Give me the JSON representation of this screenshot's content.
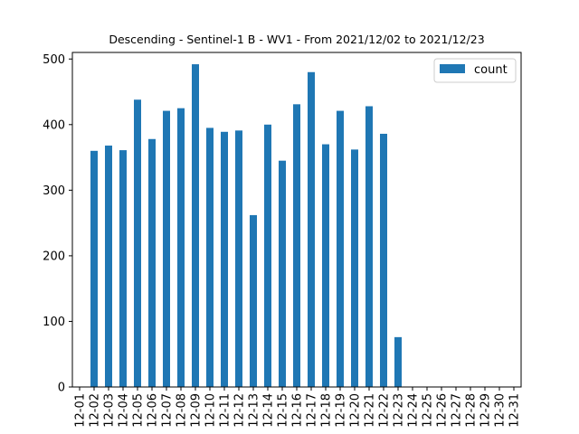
{
  "chart_data": {
    "type": "bar",
    "title": "Descending - Sentinel-1 B - WV1 - From 2021/12/02 to 2021/12/23",
    "xlabel": "",
    "ylabel": "",
    "ylim": [
      0,
      510
    ],
    "yticks": [
      0,
      100,
      200,
      300,
      400,
      500
    ],
    "grid": false,
    "legend_position": "top-right",
    "categories": [
      "12-01",
      "12-02",
      "12-03",
      "12-04",
      "12-05",
      "12-06",
      "12-07",
      "12-08",
      "12-09",
      "12-10",
      "12-11",
      "12-12",
      "12-13",
      "12-14",
      "12-15",
      "12-16",
      "12-17",
      "12-18",
      "12-19",
      "12-20",
      "12-21",
      "12-22",
      "12-23",
      "12-24",
      "12-25",
      "12-26",
      "12-27",
      "12-28",
      "12-29",
      "12-30",
      "12-31"
    ],
    "series": [
      {
        "name": "count",
        "color": "#1f77b4",
        "values": [
          0,
          360,
          368,
          361,
          438,
          378,
          421,
          425,
          492,
          395,
          389,
          391,
          262,
          400,
          345,
          431,
          480,
          370,
          421,
          362,
          428,
          386,
          76,
          0,
          0,
          0,
          0,
          0,
          0,
          0,
          0
        ]
      }
    ]
  }
}
